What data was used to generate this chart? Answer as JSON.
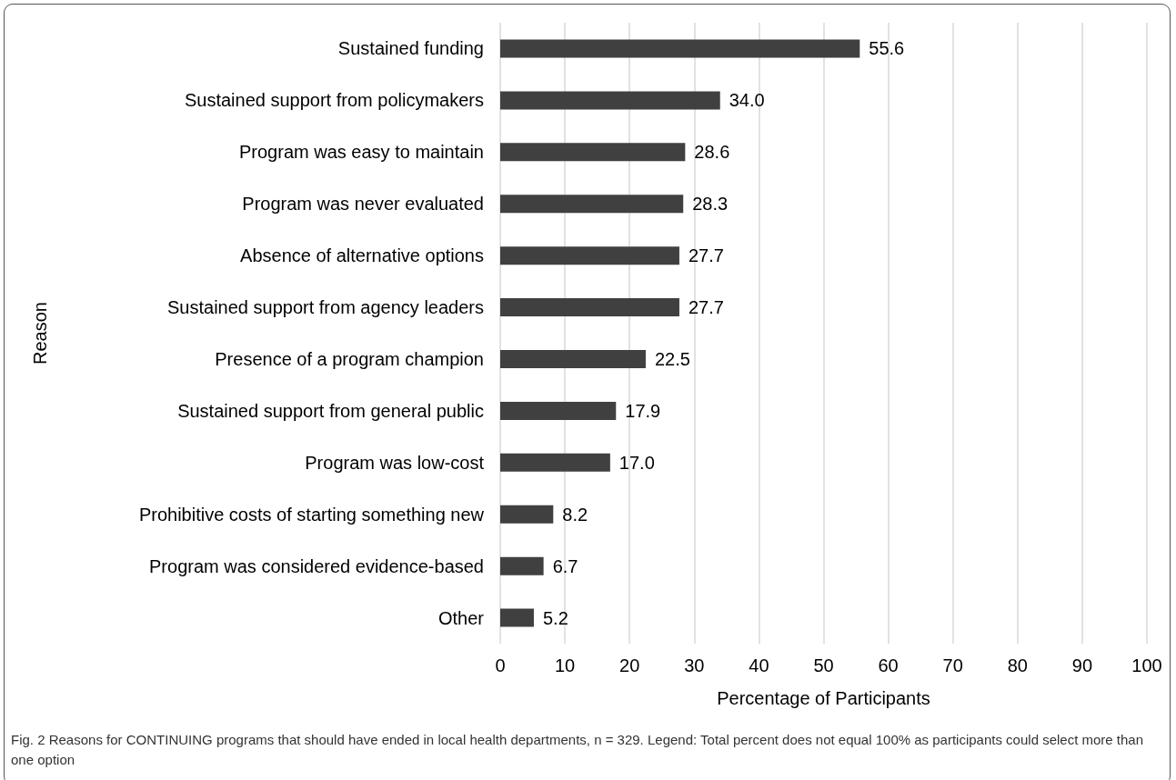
{
  "chart_data": {
    "type": "bar",
    "orientation": "horizontal",
    "xlabel": "Percentage of Participants",
    "ylabel": "Reason",
    "categories": [
      "Sustained funding",
      "Sustained support from policymakers",
      "Program was easy to maintain",
      "Program was never evaluated",
      "Absence of alternative options",
      "Sustained support from agency leaders",
      "Presence of a program champion",
      "Sustained support from general public",
      "Program was low-cost",
      "Prohibitive costs of starting something new",
      "Program was considered evidence-based",
      "Other"
    ],
    "values": [
      55.6,
      34.0,
      28.6,
      28.3,
      27.7,
      27.7,
      22.5,
      17.9,
      17.0,
      8.2,
      6.7,
      5.2
    ],
    "value_labels": [
      "55.6",
      "34.0",
      "28.6",
      "28.3",
      "27.7",
      "27.7",
      "22.5",
      "17.9",
      "17.0",
      "8.2",
      "6.7",
      "5.2"
    ],
    "color": "#404040",
    "xlim": [
      0,
      100
    ],
    "xticks": [
      0,
      10,
      20,
      30,
      40,
      50,
      60,
      70,
      80,
      90,
      100
    ],
    "grid": "x",
    "annotations": [
      "Fig. 2 Reasons for CONTINUING programs that should have ended in local health departments, n = 329. Legend: Total percent does not equal 100% as participants could select more than one option"
    ]
  }
}
